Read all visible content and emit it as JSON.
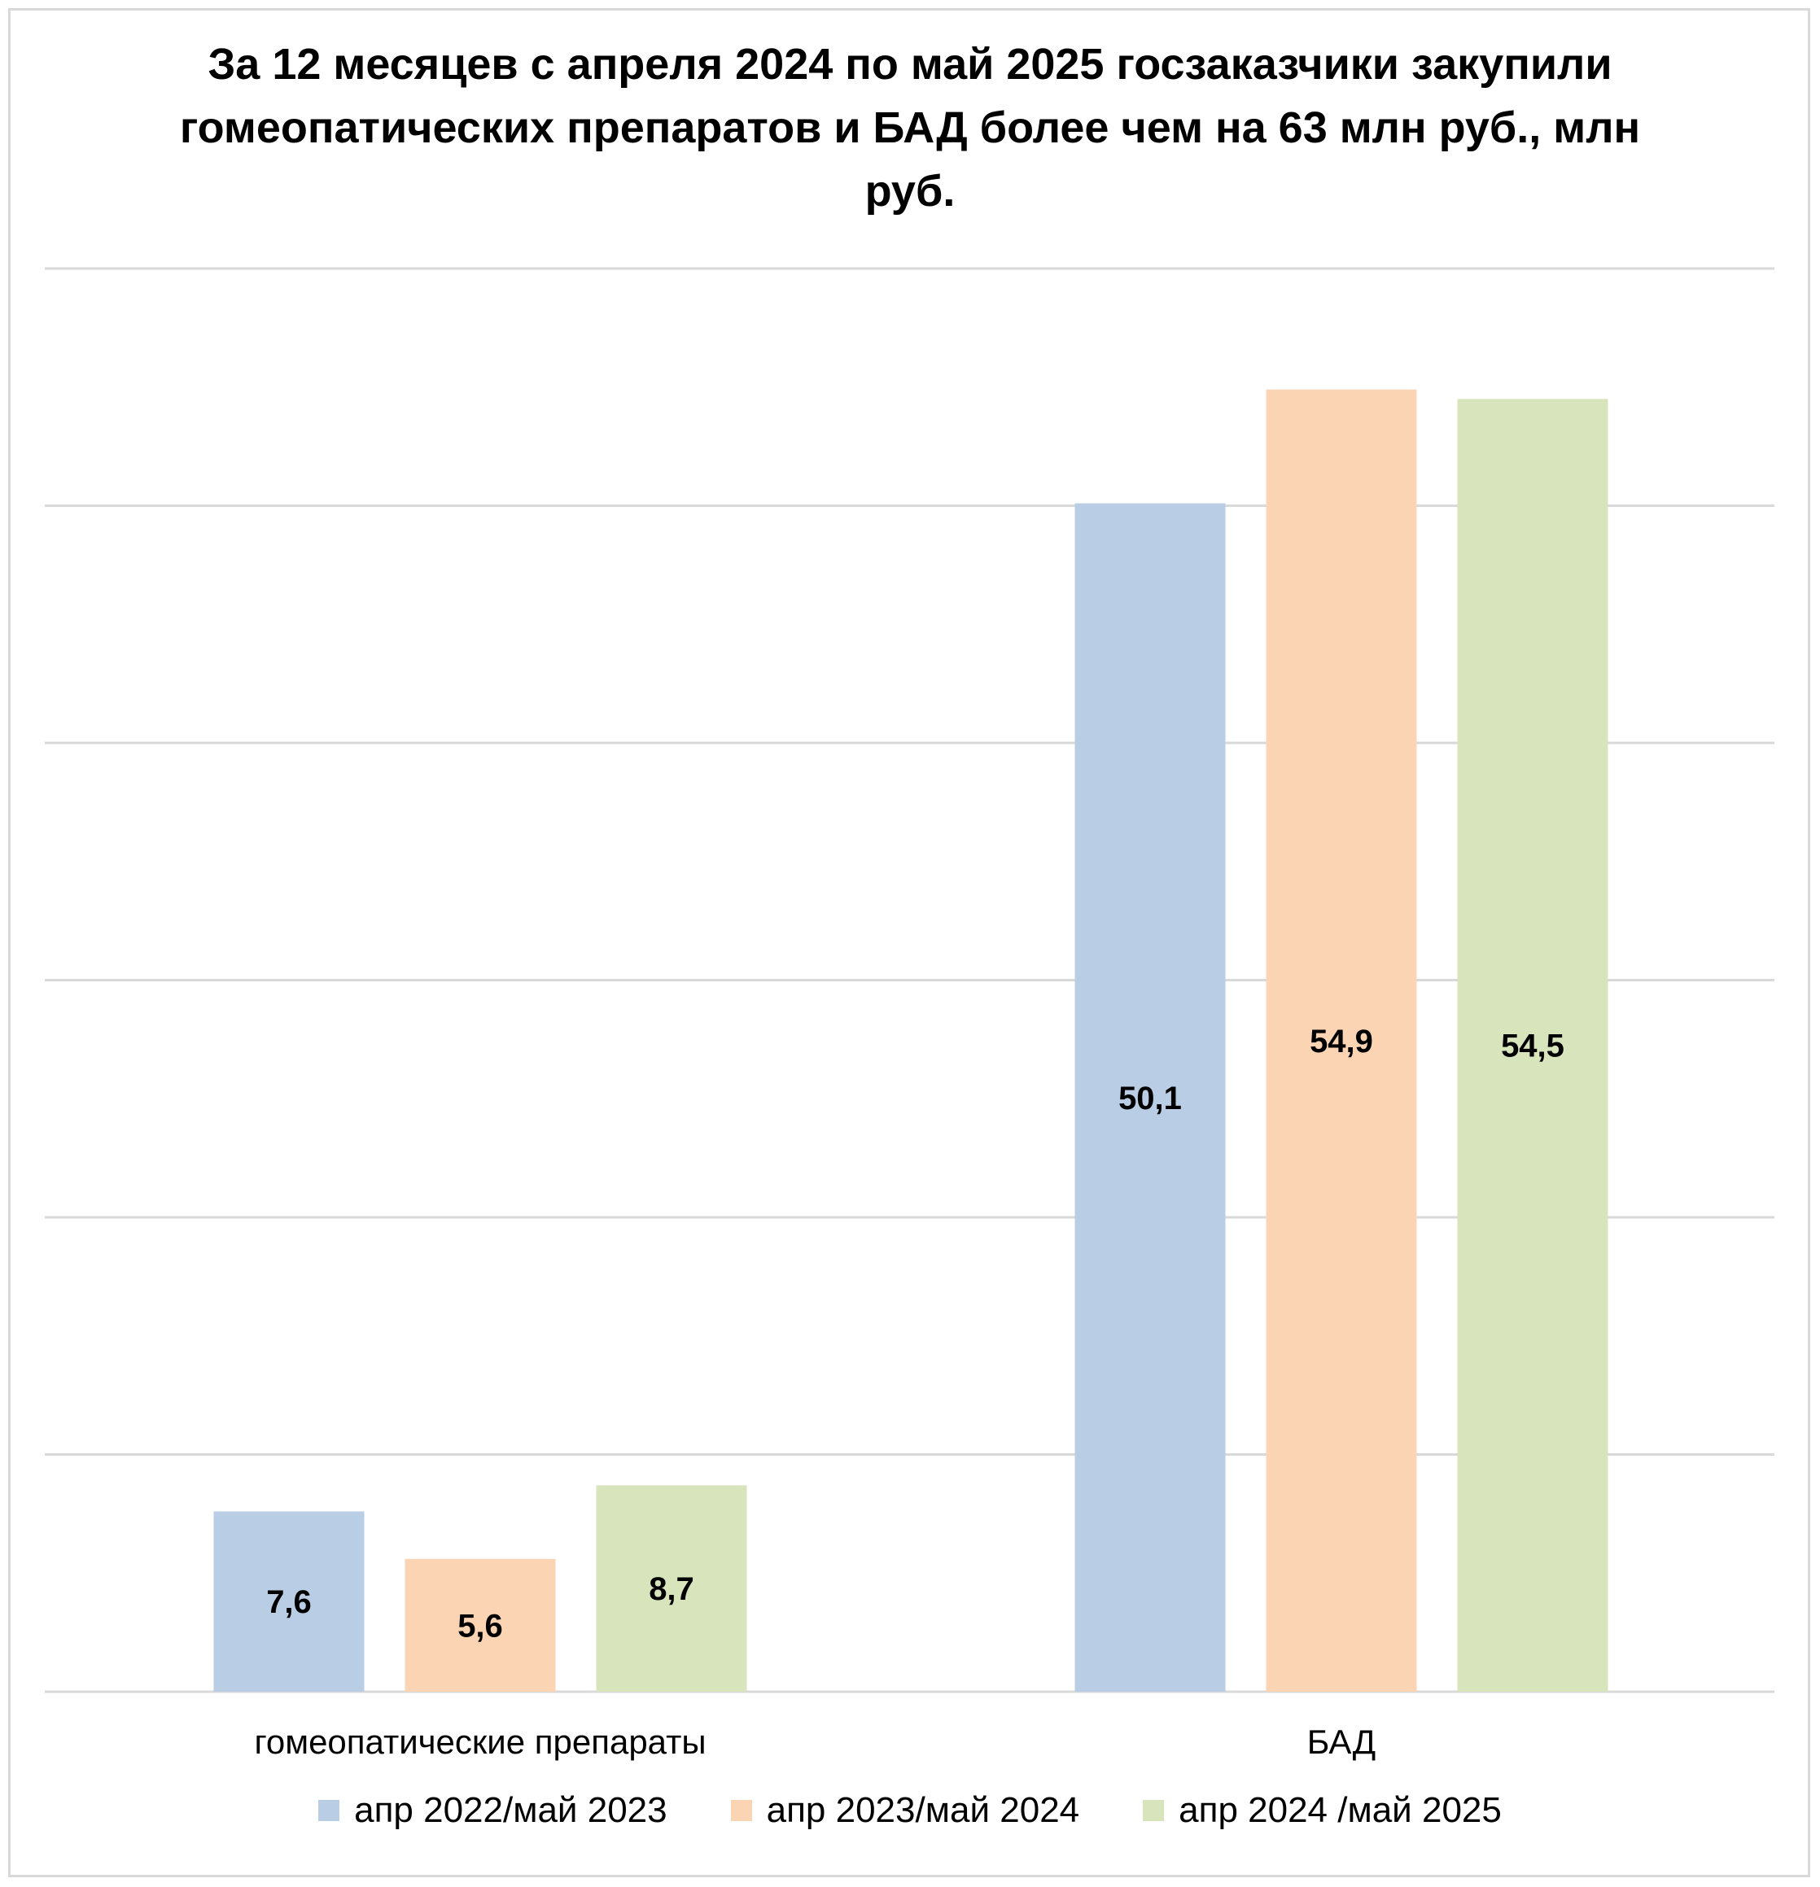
{
  "chart_data": {
    "type": "bar",
    "title": "За 12 месяцев с апреля 2024 по май 2025 госзаказчики закупили гомеопатических препаратов и БАД более чем на 63 млн руб., млн руб.",
    "categories": [
      "гомеопатические препараты",
      "БАД"
    ],
    "series": [
      {
        "name": "апр 2022/май 2023",
        "color": "#b9cde4",
        "values": [
          7.6,
          50.1
        ],
        "labels": [
          "7,6",
          "50,1"
        ]
      },
      {
        "name": "апр 2023/май 2024",
        "color": "#fbd4b4",
        "values": [
          5.6,
          54.9
        ],
        "labels": [
          "5,6",
          "54,9"
        ]
      },
      {
        "name": "апр 2024 /май 2025",
        "color": "#d8e4bc",
        "values": [
          8.7,
          54.5
        ],
        "labels": [
          "8,7",
          "54,5"
        ]
      }
    ],
    "ylim": [
      0,
      60
    ],
    "y_gridlines": [
      0,
      10,
      20,
      30,
      40,
      50,
      60
    ],
    "grid": true,
    "y_axis_labels_visible": false,
    "legend_position": "bottom"
  }
}
